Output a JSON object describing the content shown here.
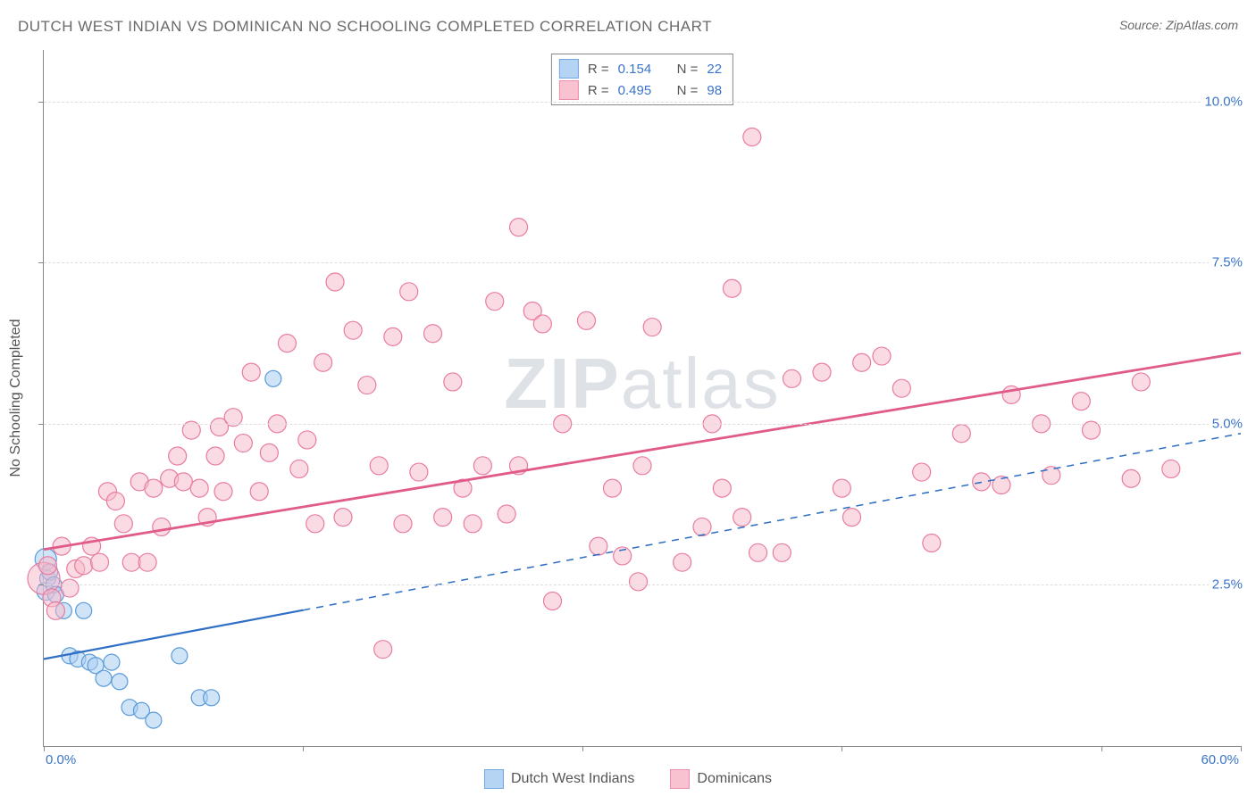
{
  "title": "DUTCH WEST INDIAN VS DOMINICAN NO SCHOOLING COMPLETED CORRELATION CHART",
  "source": "Source: ZipAtlas.com",
  "watermark_zip": "ZIP",
  "watermark_atlas": "atlas",
  "ylabel": "No Schooling Completed",
  "chart": {
    "type": "scatter",
    "background_color": "#ffffff",
    "grid_color": "#dddddd",
    "axis_color": "#888888",
    "xlim": [
      0,
      60
    ],
    "ylim": [
      0,
      10.8
    ],
    "xticks": [
      0,
      13,
      27,
      40,
      53,
      60
    ],
    "x_axis_labels": {
      "min": "0.0%",
      "max": "60.0%"
    },
    "y_gridlines": [
      2.5,
      5.0,
      7.5,
      10.0
    ],
    "y_axis_labels": [
      "2.5%",
      "5.0%",
      "7.5%",
      "10.0%"
    ],
    "tick_label_color": "#3a74c8",
    "series": [
      {
        "id": "dutch",
        "label": "Dutch West Indians",
        "fill": "#a9cdf2",
        "fill_opacity": 0.55,
        "stroke": "#5a9ad8",
        "marker_radius": 9,
        "r_value": "0.154",
        "n_value": "22",
        "line": {
          "color": "#2f6fc5",
          "width": 2.2,
          "solid_until_x": 13,
          "y_at_x0": 1.35,
          "y_at_x60": 4.85
        },
        "points": [
          {
            "x": 0.1,
            "y": 2.9,
            "r": 12
          },
          {
            "x": 0.1,
            "y": 2.4,
            "r": 10
          },
          {
            "x": 0.2,
            "y": 2.6,
            "r": 9
          },
          {
            "x": 0.3,
            "y": 2.7,
            "r": 9
          },
          {
            "x": 0.5,
            "y": 2.5,
            "r": 9
          },
          {
            "x": 0.6,
            "y": 2.35,
            "r": 9
          },
          {
            "x": 1.0,
            "y": 2.1,
            "r": 9
          },
          {
            "x": 1.3,
            "y": 1.4,
            "r": 9
          },
          {
            "x": 1.7,
            "y": 1.35,
            "r": 9
          },
          {
            "x": 2.0,
            "y": 2.1,
            "r": 9
          },
          {
            "x": 2.3,
            "y": 1.3,
            "r": 9
          },
          {
            "x": 2.6,
            "y": 1.25,
            "r": 9
          },
          {
            "x": 3.0,
            "y": 1.05,
            "r": 9
          },
          {
            "x": 3.4,
            "y": 1.3,
            "r": 9
          },
          {
            "x": 3.8,
            "y": 1.0,
            "r": 9
          },
          {
            "x": 4.3,
            "y": 0.6,
            "r": 9
          },
          {
            "x": 4.9,
            "y": 0.55,
            "r": 9
          },
          {
            "x": 5.5,
            "y": 0.4,
            "r": 9
          },
          {
            "x": 6.8,
            "y": 1.4,
            "r": 9
          },
          {
            "x": 7.8,
            "y": 0.75,
            "r": 9
          },
          {
            "x": 8.4,
            "y": 0.75,
            "r": 9
          },
          {
            "x": 11.5,
            "y": 5.7,
            "r": 9
          }
        ]
      },
      {
        "id": "dominicans",
        "label": "Dominicans",
        "fill": "#f7b8c8",
        "fill_opacity": 0.5,
        "stroke": "#e87ca0",
        "marker_radius": 10,
        "r_value": "0.495",
        "n_value": "98",
        "line": {
          "color": "#e05a8a",
          "width": 2.8,
          "solid_until_x": 60,
          "y_at_x0": 3.05,
          "y_at_x60": 6.1
        },
        "points": [
          {
            "x": 0.0,
            "y": 2.6,
            "r": 18
          },
          {
            "x": 0.2,
            "y": 2.8,
            "r": 10
          },
          {
            "x": 0.4,
            "y": 2.3,
            "r": 10
          },
          {
            "x": 0.6,
            "y": 2.1,
            "r": 10
          },
          {
            "x": 0.9,
            "y": 3.1,
            "r": 10
          },
          {
            "x": 1.3,
            "y": 2.45,
            "r": 10
          },
          {
            "x": 1.6,
            "y": 2.75,
            "r": 10
          },
          {
            "x": 2.0,
            "y": 2.8,
            "r": 10
          },
          {
            "x": 2.4,
            "y": 3.1,
            "r": 10
          },
          {
            "x": 2.8,
            "y": 2.85,
            "r": 10
          },
          {
            "x": 3.2,
            "y": 3.95,
            "r": 10
          },
          {
            "x": 3.6,
            "y": 3.8,
            "r": 10
          },
          {
            "x": 4.0,
            "y": 3.45,
            "r": 10
          },
          {
            "x": 4.4,
            "y": 2.85,
            "r": 10
          },
          {
            "x": 4.8,
            "y": 4.1,
            "r": 10
          },
          {
            "x": 5.2,
            "y": 2.85,
            "r": 10
          },
          {
            "x": 5.5,
            "y": 4.0,
            "r": 10
          },
          {
            "x": 5.9,
            "y": 3.4,
            "r": 10
          },
          {
            "x": 6.3,
            "y": 4.15,
            "r": 10
          },
          {
            "x": 6.7,
            "y": 4.5,
            "r": 10
          },
          {
            "x": 7.0,
            "y": 4.1,
            "r": 10
          },
          {
            "x": 7.4,
            "y": 4.9,
            "r": 10
          },
          {
            "x": 7.8,
            "y": 4.0,
            "r": 10
          },
          {
            "x": 8.2,
            "y": 3.55,
            "r": 10
          },
          {
            "x": 8.6,
            "y": 4.5,
            "r": 10
          },
          {
            "x": 8.8,
            "y": 4.95,
            "r": 10
          },
          {
            "x": 9.0,
            "y": 3.95,
            "r": 10
          },
          {
            "x": 9.5,
            "y": 5.1,
            "r": 10
          },
          {
            "x": 10.0,
            "y": 4.7,
            "r": 10
          },
          {
            "x": 10.4,
            "y": 5.8,
            "r": 10
          },
          {
            "x": 10.8,
            "y": 3.95,
            "r": 10
          },
          {
            "x": 11.3,
            "y": 4.55,
            "r": 10
          },
          {
            "x": 11.7,
            "y": 5.0,
            "r": 10
          },
          {
            "x": 12.2,
            "y": 6.25,
            "r": 10
          },
          {
            "x": 12.8,
            "y": 4.3,
            "r": 10
          },
          {
            "x": 13.2,
            "y": 4.75,
            "r": 10
          },
          {
            "x": 13.6,
            "y": 3.45,
            "r": 10
          },
          {
            "x": 14.0,
            "y": 5.95,
            "r": 10
          },
          {
            "x": 14.6,
            "y": 7.2,
            "r": 10
          },
          {
            "x": 15.0,
            "y": 3.55,
            "r": 10
          },
          {
            "x": 15.5,
            "y": 6.45,
            "r": 10
          },
          {
            "x": 16.2,
            "y": 5.6,
            "r": 10
          },
          {
            "x": 16.8,
            "y": 4.35,
            "r": 10
          },
          {
            "x": 17.0,
            "y": 1.5,
            "r": 10
          },
          {
            "x": 17.5,
            "y": 6.35,
            "r": 10
          },
          {
            "x": 18.0,
            "y": 3.45,
            "r": 10
          },
          {
            "x": 18.3,
            "y": 7.05,
            "r": 10
          },
          {
            "x": 18.8,
            "y": 4.25,
            "r": 10
          },
          {
            "x": 19.5,
            "y": 6.4,
            "r": 10
          },
          {
            "x": 20.0,
            "y": 3.55,
            "r": 10
          },
          {
            "x": 20.5,
            "y": 5.65,
            "r": 10
          },
          {
            "x": 21.0,
            "y": 4.0,
            "r": 10
          },
          {
            "x": 21.5,
            "y": 3.45,
            "r": 10
          },
          {
            "x": 22.0,
            "y": 4.35,
            "r": 10
          },
          {
            "x": 22.6,
            "y": 6.9,
            "r": 10
          },
          {
            "x": 23.2,
            "y": 3.6,
            "r": 10
          },
          {
            "x": 23.8,
            "y": 4.35,
            "r": 10
          },
          {
            "x": 23.8,
            "y": 8.05,
            "r": 10
          },
          {
            "x": 24.5,
            "y": 6.75,
            "r": 10
          },
          {
            "x": 25.0,
            "y": 6.55,
            "r": 10
          },
          {
            "x": 25.5,
            "y": 2.25,
            "r": 10
          },
          {
            "x": 26.0,
            "y": 5.0,
            "r": 10
          },
          {
            "x": 27.2,
            "y": 6.6,
            "r": 10
          },
          {
            "x": 27.8,
            "y": 3.1,
            "r": 10
          },
          {
            "x": 28.5,
            "y": 4.0,
            "r": 10
          },
          {
            "x": 29.0,
            "y": 2.95,
            "r": 10
          },
          {
            "x": 29.8,
            "y": 2.55,
            "r": 10
          },
          {
            "x": 30.0,
            "y": 4.35,
            "r": 10
          },
          {
            "x": 30.5,
            "y": 6.5,
            "r": 10
          },
          {
            "x": 32.0,
            "y": 2.85,
            "r": 10
          },
          {
            "x": 33.0,
            "y": 3.4,
            "r": 10
          },
          {
            "x": 33.5,
            "y": 5.0,
            "r": 10
          },
          {
            "x": 34.0,
            "y": 4.0,
            "r": 10
          },
          {
            "x": 34.5,
            "y": 7.1,
            "r": 10
          },
          {
            "x": 35.0,
            "y": 3.55,
            "r": 10
          },
          {
            "x": 35.5,
            "y": 9.45,
            "r": 10
          },
          {
            "x": 35.8,
            "y": 3.0,
            "r": 10
          },
          {
            "x": 37.0,
            "y": 3.0,
            "r": 10
          },
          {
            "x": 37.5,
            "y": 5.7,
            "r": 10
          },
          {
            "x": 39.0,
            "y": 5.8,
            "r": 10
          },
          {
            "x": 40.0,
            "y": 4.0,
            "r": 10
          },
          {
            "x": 40.5,
            "y": 3.55,
            "r": 10
          },
          {
            "x": 41.0,
            "y": 5.95,
            "r": 10
          },
          {
            "x": 42.0,
            "y": 6.05,
            "r": 10
          },
          {
            "x": 43.0,
            "y": 5.55,
            "r": 10
          },
          {
            "x": 44.0,
            "y": 4.25,
            "r": 10
          },
          {
            "x": 44.5,
            "y": 3.15,
            "r": 10
          },
          {
            "x": 46.0,
            "y": 4.85,
            "r": 10
          },
          {
            "x": 47.0,
            "y": 4.1,
            "r": 10
          },
          {
            "x": 48.0,
            "y": 4.05,
            "r": 10
          },
          {
            "x": 48.5,
            "y": 5.45,
            "r": 10
          },
          {
            "x": 50.0,
            "y": 5.0,
            "r": 10
          },
          {
            "x": 50.5,
            "y": 4.2,
            "r": 10
          },
          {
            "x": 52.0,
            "y": 5.35,
            "r": 10
          },
          {
            "x": 52.5,
            "y": 4.9,
            "r": 10
          },
          {
            "x": 54.5,
            "y": 4.15,
            "r": 10
          },
          {
            "x": 55.0,
            "y": 5.65,
            "r": 10
          },
          {
            "x": 56.5,
            "y": 4.3,
            "r": 10
          }
        ]
      }
    ]
  },
  "legend_top": {
    "r_prefix": "R  =",
    "n_prefix": "N  ="
  },
  "legend_bottom": {
    "items": [
      "Dutch West Indians",
      "Dominicans"
    ]
  }
}
